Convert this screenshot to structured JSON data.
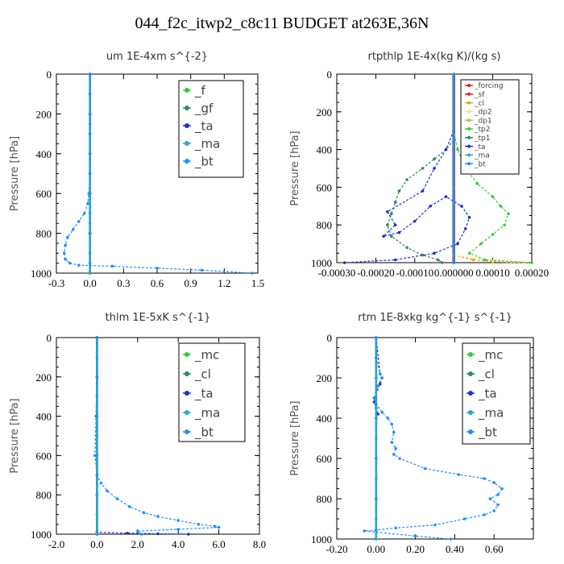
{
  "title": "044_f2c_itwp2_c8c11  BUDGET at263E,36N",
  "chart_data": [
    {
      "type": "line",
      "title": "um  1E-4xm s^{-2}",
      "ylabel": "Pressure [hPa]",
      "xlim": [
        -0.3,
        1.5
      ],
      "xticks": [
        -0.3,
        0.0,
        0.3,
        0.6,
        0.9,
        1.2,
        1.5
      ],
      "xtick_labels": [
        "-0.3",
        "0.0",
        "0.3",
        "0.6",
        "0.9",
        "1.2",
        "1.5"
      ],
      "ylim": [
        1000,
        0
      ],
      "yticks": [
        0,
        200,
        400,
        600,
        800,
        1000
      ],
      "legend_position": "top-right",
      "series": [
        {
          "name": "_f",
          "color": "#32cd32",
          "x": [
            0,
            0,
            0,
            0,
            0,
            0,
            0,
            0,
            0,
            0,
            0
          ],
          "y": [
            0,
            100,
            200,
            300,
            400,
            500,
            600,
            700,
            800,
            900,
            1000
          ]
        },
        {
          "name": "_gf",
          "color": "#2e8b57",
          "x": [
            0,
            0,
            0,
            0,
            0,
            0,
            0
          ],
          "y": [
            0,
            200,
            400,
            600,
            800,
            950,
            1000
          ]
        },
        {
          "name": "_ta",
          "color": "#1f2fd0",
          "x": [
            0,
            0,
            0,
            0,
            0,
            0
          ],
          "y": [
            0,
            200,
            400,
            600,
            800,
            1000
          ]
        },
        {
          "name": "_ma",
          "color": "#2aa3d8",
          "x": [
            0,
            0,
            0,
            0,
            0
          ],
          "y": [
            0,
            250,
            500,
            750,
            1000
          ]
        },
        {
          "name": "_bt",
          "color": "#1e90ff",
          "x": [
            0.0,
            0.0,
            0.0,
            0.0,
            0.0,
            0.0,
            -0.01,
            -0.02,
            -0.05,
            -0.1,
            -0.15,
            -0.2,
            -0.22,
            -0.23,
            -0.22,
            -0.18,
            -0.1,
            0.2,
            0.6,
            1.0,
            1.45
          ],
          "y": [
            0,
            100,
            200,
            300,
            400,
            500,
            600,
            650,
            700,
            740,
            780,
            820,
            860,
            900,
            930,
            950,
            960,
            965,
            975,
            985,
            1000
          ]
        }
      ]
    },
    {
      "type": "line",
      "title": "rtpthlp  1E-4x(kg K)/(kg s)",
      "ylabel": "Pressure [hPa]",
      "xlim": [
        -0.0003,
        0.0002
      ],
      "xticks": [
        -0.0003,
        -0.0002,
        -0.0001,
        0.0,
        0.0001,
        0.0002
      ],
      "xtick_labels": [
        "-0.00030",
        "-0.00020",
        "-0.00010",
        "0.000000",
        "0.00010",
        "0.00020"
      ],
      "ylim": [
        1000,
        0
      ],
      "yticks": [
        0,
        200,
        400,
        600,
        800,
        1000
      ],
      "legend_position": "top-right",
      "series": [
        {
          "name": "_forcing",
          "color": "#e0201b",
          "x": [
            0,
            0,
            0,
            0,
            0,
            0
          ],
          "y": [
            0,
            200,
            400,
            600,
            800,
            1000
          ]
        },
        {
          "name": "_sf",
          "color": "#e0201b",
          "x": [
            0,
            0,
            0,
            0,
            0,
            0
          ],
          "y": [
            0,
            200,
            400,
            600,
            800,
            1000
          ]
        },
        {
          "name": "_cl",
          "color": "#e8a317",
          "x": [
            0,
            0,
            0,
            0,
            0,
            5e-05,
            0.0001,
            0.00016
          ],
          "y": [
            0,
            300,
            600,
            900,
            960,
            985,
            995,
            1000
          ]
        },
        {
          "name": "_dp2",
          "color": "#f3e27a",
          "x": [
            0,
            0,
            0,
            0.0001,
            0.00018
          ],
          "y": [
            0,
            500,
            960,
            990,
            1000
          ]
        },
        {
          "name": "_dp1",
          "color": "#9acd32",
          "x": [
            0,
            0,
            0,
            0
          ],
          "y": [
            0,
            500,
            960,
            1000
          ]
        },
        {
          "name": "_tp2",
          "color": "#32cd32",
          "x": [
            0,
            1e-05,
            3e-05,
            6e-05,
            0.0001,
            0.00012,
            0.00014,
            0.00013,
            0.0001,
            7e-05,
            4e-05,
            8e-05,
            0.0002
          ],
          "y": [
            300,
            400,
            500,
            580,
            650,
            700,
            740,
            800,
            850,
            900,
            950,
            985,
            1000
          ]
        },
        {
          "name": "_tp1",
          "color": "#2e8b57",
          "x": [
            0,
            -2e-05,
            -5e-05,
            -8e-05,
            -0.00012,
            -0.00014,
            -0.00015,
            -0.00016,
            -0.00017,
            -0.00016,
            -0.00012,
            -8e-05,
            -4e-05,
            -3e-05
          ],
          "y": [
            350,
            400,
            450,
            500,
            560,
            620,
            680,
            740,
            800,
            860,
            920,
            960,
            985,
            1000
          ]
        },
        {
          "name": "_ta",
          "color": "#1f2fd0",
          "x": [
            0,
            -2e-05,
            -5e-05,
            -8e-05,
            -0.00017,
            -0.00015,
            -0.00018,
            -0.00014,
            -0.0001,
            -6e-05,
            -2e-05,
            2e-05,
            4e-05,
            3e-05,
            1e-05,
            -5e-05,
            -0.00015,
            -0.00028
          ],
          "y": [
            300,
            400,
            500,
            620,
            730,
            800,
            860,
            840,
            780,
            700,
            650,
            700,
            760,
            820,
            900,
            950,
            985,
            1000
          ]
        },
        {
          "name": "_ma",
          "color": "#2aa3d8",
          "x": [
            0,
            0,
            0,
            0
          ],
          "y": [
            0,
            500,
            900,
            1000
          ]
        },
        {
          "name": "_bt",
          "color": "#1e90ff",
          "x": [
            0,
            0,
            0,
            0
          ],
          "y": [
            0,
            500,
            900,
            1000
          ]
        }
      ]
    },
    {
      "type": "line",
      "title": "thlm  1E-5xK s^{-1}",
      "ylabel": "Pressure [hPa]",
      "xlim": [
        -2.0,
        8.0
      ],
      "xticks": [
        -2.0,
        0.0,
        2.0,
        4.0,
        6.0,
        8.0
      ],
      "xtick_labels": [
        "-2.0",
        "0.0",
        "2.0",
        "4.0",
        "6.0",
        "8.0"
      ],
      "ylim": [
        1000,
        0
      ],
      "yticks": [
        0,
        200,
        400,
        600,
        800,
        1000
      ],
      "legend_position": "top-right",
      "series": [
        {
          "name": "_mc",
          "color": "#32cd32",
          "x": [
            0,
            0,
            0,
            0,
            0,
            0,
            0,
            0,
            0,
            0,
            0
          ],
          "y": [
            0,
            100,
            200,
            300,
            400,
            500,
            600,
            700,
            800,
            900,
            1000
          ]
        },
        {
          "name": "_cl",
          "color": "#2e8b57",
          "x": [
            0,
            0,
            0,
            0,
            0,
            0
          ],
          "y": [
            0,
            200,
            400,
            600,
            800,
            1000
          ]
        },
        {
          "name": "_ta",
          "color": "#1f2fd0",
          "x": [
            0,
            0,
            0,
            1.5,
            3.0,
            4.5
          ],
          "y": [
            0,
            400,
            990,
            995,
            998,
            1000
          ]
        },
        {
          "name": "_ma",
          "color": "#2aa3d8",
          "x": [
            0,
            0,
            0,
            0
          ],
          "y": [
            0,
            400,
            800,
            1000
          ]
        },
        {
          "name": "_bt",
          "color": "#1e90ff",
          "x": [
            0.0,
            0.0,
            -0.05,
            -0.1,
            0.0,
            0.2,
            0.5,
            1.0,
            1.6,
            2.3,
            3.0,
            4.0,
            5.0,
            5.8,
            6.0,
            4.0,
            2.0,
            2.2
          ],
          "y": [
            0,
            200,
            400,
            600,
            700,
            740,
            780,
            820,
            860,
            890,
            910,
            930,
            950,
            960,
            965,
            975,
            985,
            1000
          ]
        }
      ]
    },
    {
      "type": "line",
      "title": "rtm  1E-8xkg kg^{-1} s^{-1}",
      "ylabel": "Pressure [hPa]",
      "xlim": [
        -0.2,
        0.8
      ],
      "xticks": [
        -0.2,
        0.0,
        0.2,
        0.4,
        0.6
      ],
      "xtick_labels": [
        "-0.20",
        "0.00",
        "0.20",
        "0.40",
        "0.60"
      ],
      "ylim": [
        1000,
        0
      ],
      "yticks": [
        0,
        200,
        400,
        600,
        800,
        1000
      ],
      "legend_position": "top-right",
      "series": [
        {
          "name": "_mc",
          "color": "#32cd32",
          "x": [
            0,
            0,
            0,
            0,
            0,
            0,
            0,
            0,
            0,
            0,
            0
          ],
          "y": [
            0,
            100,
            200,
            300,
            400,
            500,
            600,
            700,
            800,
            900,
            1000
          ]
        },
        {
          "name": "_cl",
          "color": "#2e8b57",
          "x": [
            0,
            0,
            0,
            0,
            0,
            0
          ],
          "y": [
            0,
            200,
            400,
            600,
            800,
            1000
          ]
        },
        {
          "name": "_ta",
          "color": "#1f2fd0",
          "x": [
            0,
            0.02,
            0.03,
            0.02,
            -0.01,
            -0.01,
            0,
            0.01
          ],
          "y": [
            0,
            180,
            200,
            230,
            300,
            320,
            350,
            380
          ]
        },
        {
          "name": "_ma",
          "color": "#2aa3d8",
          "x": [
            0,
            0,
            0,
            0
          ],
          "y": [
            0,
            400,
            800,
            1000
          ]
        },
        {
          "name": "_bt",
          "color": "#1e90ff",
          "x": [
            0.0,
            0.0,
            0.02,
            0.03,
            0.01,
            -0.01,
            0.0,
            0.03,
            0.06,
            0.08,
            0.09,
            0.08,
            0.1,
            0.09,
            0.12,
            0.25,
            0.42,
            0.55,
            0.6,
            0.64,
            0.62,
            0.58,
            0.62,
            0.6,
            0.55,
            0.45,
            0.3,
            0.1,
            0.0,
            -0.06,
            0.2,
            0.38
          ],
          "y": [
            0,
            100,
            180,
            200,
            240,
            300,
            330,
            370,
            400,
            430,
            470,
            520,
            550,
            580,
            600,
            650,
            680,
            700,
            720,
            750,
            780,
            800,
            830,
            860,
            880,
            900,
            930,
            945,
            955,
            960,
            985,
            1000
          ]
        }
      ]
    }
  ]
}
